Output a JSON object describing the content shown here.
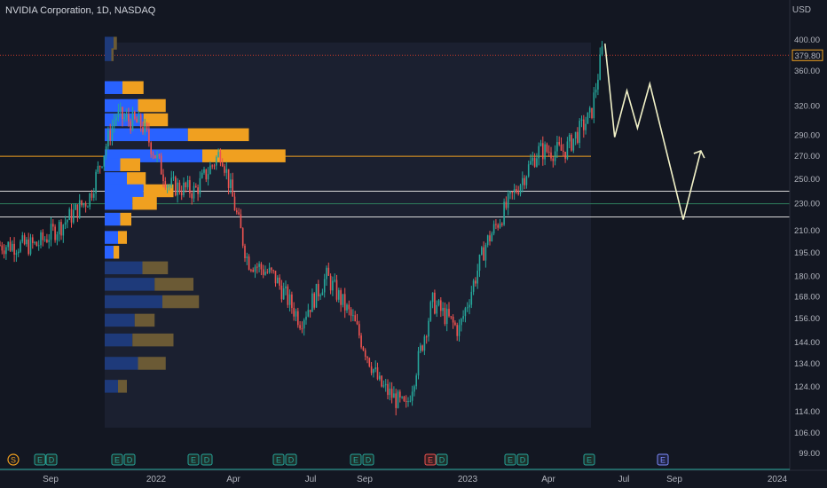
{
  "header": {
    "symbol": "NVIDIA Corporation, 1D, NASDAQ",
    "currency": "USD"
  },
  "colors": {
    "background": "#131722",
    "up_candle": "#26a69a",
    "down_candle": "#ef5350",
    "vp_up": "#2962ff",
    "vp_down": "#f0a020",
    "poc_line": "#f0a020",
    "projection": "#f2f2c8",
    "price_marker": "#f0a020"
  },
  "chart_data": {
    "type": "candlestick",
    "title": "NVIDIA Corporation, 1D, NASDAQ",
    "y_scale": "log",
    "ylim": [
      97,
      420
    ],
    "price_ticks": [
      400,
      360,
      320,
      290,
      270,
      250,
      230,
      210,
      195,
      180,
      168,
      156,
      144,
      134,
      124,
      114,
      106,
      99
    ],
    "time_ticks": [
      "Sep",
      "2022",
      "Apr",
      "Jul",
      "Sep",
      "2023",
      "Apr",
      "Jul",
      "Sep",
      "2024"
    ],
    "last_price": "379.80",
    "close_series": [
      {
        "x": "2021-08",
        "y": 200
      },
      {
        "x": "2021-09",
        "y": 215
      },
      {
        "x": "2021-10",
        "y": 235
      },
      {
        "x": "2021-11",
        "y": 310
      },
      {
        "x": "2021-12",
        "y": 300
      },
      {
        "x": "2022-01",
        "y": 245
      },
      {
        "x": "2022-02",
        "y": 240
      },
      {
        "x": "2022-03",
        "y": 275
      },
      {
        "x": "2022-04",
        "y": 190
      },
      {
        "x": "2022-05",
        "y": 180
      },
      {
        "x": "2022-06",
        "y": 155
      },
      {
        "x": "2022-07",
        "y": 180
      },
      {
        "x": "2022-08",
        "y": 155
      },
      {
        "x": "2022-09",
        "y": 125
      },
      {
        "x": "2022-10",
        "y": 115
      },
      {
        "x": "2022-11",
        "y": 165
      },
      {
        "x": "2022-12",
        "y": 150
      },
      {
        "x": "2023-01",
        "y": 200
      },
      {
        "x": "2023-02",
        "y": 235
      },
      {
        "x": "2023-03",
        "y": 275
      },
      {
        "x": "2023-04",
        "y": 275
      },
      {
        "x": "2023-05",
        "y": 310
      },
      {
        "x": "2023-05-30",
        "y": 400
      }
    ],
    "horizontal_levels": [
      {
        "value": 270,
        "style": "poc"
      },
      {
        "value": 240,
        "style": "zone"
      },
      {
        "value": 230,
        "style": "mid"
      },
      {
        "value": 220,
        "style": "zone"
      }
    ],
    "volume_profile": [
      {
        "price": 395,
        "up": 8,
        "down": 3
      },
      {
        "price": 380,
        "up": 6,
        "down": 2
      },
      {
        "price": 340,
        "up": 16,
        "down": 19
      },
      {
        "price": 320,
        "up": 30,
        "down": 25
      },
      {
        "price": 305,
        "up": 35,
        "down": 22
      },
      {
        "price": 290,
        "up": 75,
        "down": 55
      },
      {
        "price": 270,
        "up": 88,
        "down": 75
      },
      {
        "price": 262,
        "up": 14,
        "down": 18
      },
      {
        "price": 250,
        "up": 20,
        "down": 17
      },
      {
        "price": 240,
        "up": 35,
        "down": 27
      },
      {
        "price": 230,
        "up": 25,
        "down": 22
      },
      {
        "price": 218,
        "up": 14,
        "down": 10
      },
      {
        "price": 205,
        "up": 12,
        "down": 8
      },
      {
        "price": 195,
        "up": 8,
        "down": 5
      },
      {
        "price": 185,
        "up": 34,
        "down": 23
      },
      {
        "price": 175,
        "up": 45,
        "down": 35
      },
      {
        "price": 165,
        "up": 52,
        "down": 33
      },
      {
        "price": 155,
        "up": 27,
        "down": 18
      },
      {
        "price": 145,
        "up": 25,
        "down": 37
      },
      {
        "price": 134,
        "up": 30,
        "down": 25
      },
      {
        "price": 124,
        "up": 12,
        "down": 8
      }
    ],
    "projection_path": [
      {
        "x": "2023-06-01",
        "y": 395
      },
      {
        "x": "2023-06-12",
        "y": 288
      },
      {
        "x": "2023-06-26",
        "y": 337
      },
      {
        "x": "2023-07-08",
        "y": 297
      },
      {
        "x": "2023-07-22",
        "y": 345
      },
      {
        "x": "2023-08-30",
        "y": 218
      },
      {
        "x": "2023-09-20",
        "y": 275
      }
    ],
    "event_markers": [
      {
        "label": "S",
        "kind": "split"
      },
      {
        "label": "E",
        "kind": "earnings"
      },
      {
        "label": "D",
        "kind": "dividend"
      },
      {
        "label": "E",
        "kind": "earnings"
      },
      {
        "label": "D",
        "kind": "dividend"
      },
      {
        "label": "E",
        "kind": "earnings"
      },
      {
        "label": "D",
        "kind": "dividend"
      },
      {
        "label": "E",
        "kind": "earnings"
      },
      {
        "label": "D",
        "kind": "dividend"
      },
      {
        "label": "E",
        "kind": "earnings"
      },
      {
        "label": "D",
        "kind": "dividend"
      },
      {
        "label": "E",
        "kind": "earnings-miss"
      },
      {
        "label": "D",
        "kind": "dividend"
      },
      {
        "label": "E",
        "kind": "earnings"
      },
      {
        "label": "D",
        "kind": "dividend"
      },
      {
        "label": "E",
        "kind": "earnings"
      },
      {
        "label": "E",
        "kind": "upcoming-earnings"
      }
    ]
  }
}
